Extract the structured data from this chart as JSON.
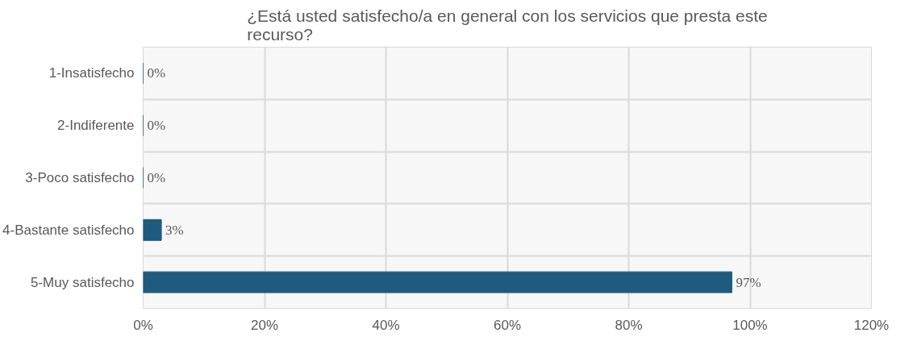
{
  "chart_data": {
    "type": "bar",
    "orientation": "horizontal",
    "title": "¿Está usted satisfecho/a en general con los servicios que presta este recurso?",
    "categories": [
      "1-Insatisfecho",
      "2-Indiferente",
      "3-Poco satisfecho",
      "4-Bastante satisfecho",
      "5-Muy satisfecho"
    ],
    "values": [
      0,
      0,
      0,
      3,
      97
    ],
    "color": "#1f5b7e",
    "value_labels": [
      "0%",
      "0%",
      "0%",
      "3%",
      "97%"
    ],
    "xlim": [
      0,
      120
    ],
    "xticks": [
      {
        "value": 0,
        "label": "0%"
      },
      {
        "value": 20,
        "label": "20%"
      },
      {
        "value": 40,
        "label": "40%"
      },
      {
        "value": 60,
        "label": "60%"
      },
      {
        "value": 80,
        "label": "80%"
      },
      {
        "value": 100,
        "label": "100%"
      },
      {
        "value": 120,
        "label": "120%"
      }
    ],
    "grid": true
  }
}
